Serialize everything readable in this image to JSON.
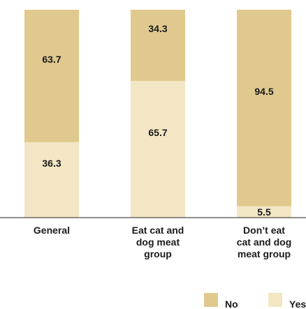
{
  "chart_data": {
    "type": "bar",
    "stacked": true,
    "orientation": "vertical",
    "categories": [
      [
        "General"
      ],
      [
        "Eat cat and",
        "dog meat",
        "group"
      ],
      [
        "Don’t eat",
        "cat and dog",
        "meat group"
      ]
    ],
    "series": [
      {
        "name": "Yes",
        "values": [
          36.3,
          65.7,
          5.5
        ],
        "color": "#f3e6c4"
      },
      {
        "name": "No",
        "values": [
          63.7,
          34.3,
          94.5
        ],
        "color": "#e0c98e"
      }
    ],
    "ylim": [
      0,
      100
    ],
    "grid": false,
    "legend": "bottom-right",
    "title": "",
    "xlabel": "",
    "ylabel": ""
  },
  "legend": {
    "items": [
      {
        "label": "No",
        "color": "#e0c98e"
      },
      {
        "label": "Yes",
        "color": "#f3e6c4"
      }
    ]
  }
}
